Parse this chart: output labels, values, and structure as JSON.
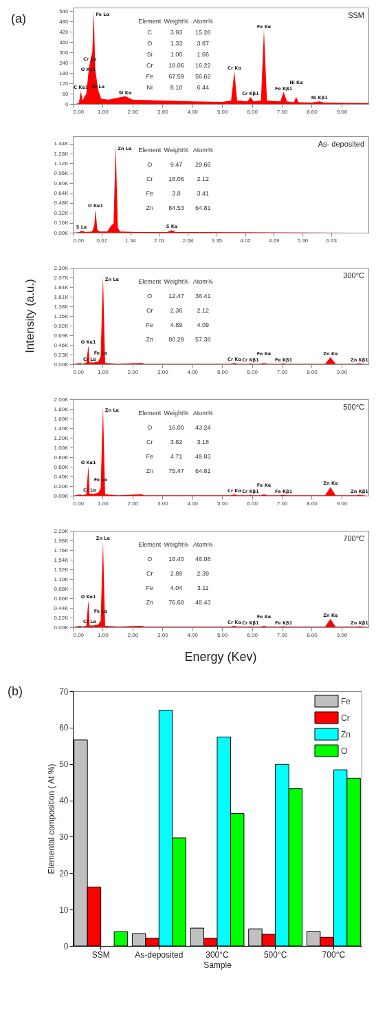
{
  "chart_data": [
    {
      "type": "area",
      "title": "SSM",
      "subtitle": "(a)",
      "xlim": [
        0,
        9.9
      ],
      "ylim": [
        0,
        560
      ],
      "xticks": [
        {
          "value": 0,
          "label": "0.00"
        },
        {
          "value": 1,
          "label": "1.00"
        },
        {
          "value": 2,
          "label": "2.00"
        },
        {
          "value": 3,
          "label": "3.00"
        },
        {
          "value": 4,
          "label": "4.00"
        },
        {
          "value": 5,
          "label": "5.00"
        },
        {
          "value": 6,
          "label": "6.00"
        },
        {
          "value": 7,
          "label": "7.00"
        },
        {
          "value": 8,
          "label": "8.00"
        },
        {
          "value": 9,
          "label": "9.00"
        }
      ],
      "yticks": [
        0,
        60,
        120,
        180,
        240,
        300,
        360,
        420,
        480,
        540
      ],
      "x": [
        0.1,
        0.2,
        0.27,
        0.32,
        0.45,
        0.52,
        0.57,
        0.65,
        0.7,
        0.75,
        0.85,
        0.95,
        1.2,
        1.75,
        2.0,
        3.0,
        4.0,
        5.0,
        5.3,
        5.41,
        5.5,
        5.85,
        5.95,
        6.05,
        6.3,
        6.4,
        6.5,
        6.95,
        7.06,
        7.17,
        7.4,
        7.48,
        7.56,
        8.0,
        8.26,
        8.4,
        9.9
      ],
      "series": [
        {
          "color": "#ff0000",
          "values": [
            0,
            5,
            75,
            20,
            60,
            180,
            240,
            300,
            540,
            200,
            80,
            30,
            25,
            45,
            25,
            20,
            15,
            12,
            20,
            190,
            20,
            15,
            40,
            15,
            20,
            430,
            20,
            15,
            70,
            15,
            10,
            40,
            10,
            8,
            15,
            8,
            5
          ]
        }
      ],
      "annotations": [
        "Element",
        "Weight%",
        "Atom%",
        "C",
        "3.93",
        "15.28",
        "O",
        "1.33",
        "3.87",
        "Si",
        "1.00",
        "1.66",
        "Cr",
        "18.06",
        "16.22",
        "Fe",
        "67.59",
        "56.62",
        "Ni",
        "8.10",
        "6.44",
        {
          "text": "C Kα1",
          "x": 0.27,
          "y": 75
        },
        {
          "text": "O Kα1",
          "x": 0.52,
          "y": 180
        },
        {
          "text": "Cr Lα",
          "x": 0.57,
          "y": 240
        },
        {
          "text": "Fe Lα",
          "x": 0.7,
          "y": 540
        },
        {
          "text": "Ni Lα",
          "x": 0.85,
          "y": 80
        },
        {
          "text": "Si Kα",
          "x": 1.75,
          "y": 45
        },
        {
          "text": "Cr Kα",
          "x": 5.41,
          "y": 190
        },
        {
          "text": "Cr Kβ1",
          "x": 5.95,
          "y": 40
        },
        {
          "text": "Fe Kα",
          "x": 6.4,
          "y": 430
        },
        {
          "text": "Fe Kβ1",
          "x": 7.06,
          "y": 70
        },
        {
          "text": "Ni Kα",
          "x": 7.48,
          "y": 40
        },
        {
          "text": "Ni Kβ1",
          "x": 8.26,
          "y": 15
        }
      ]
    },
    {
      "type": "area",
      "title": "As- deposited",
      "xlim": [
        0,
        6.9
      ],
      "ylim": [
        0,
        1560
      ],
      "xticks": [
        {
          "value": 0,
          "label": "0.00"
        },
        0.67,
        1.34,
        2.01,
        2.68,
        3.35,
        4.02,
        4.69,
        5.36,
        6.03
      ],
      "yticks": [
        {
          "value": 0,
          "label": "0.00K"
        },
        {
          "value": 160,
          "label": "0.16K"
        },
        {
          "value": 320,
          "label": "0.32K"
        },
        {
          "value": 480,
          "label": "0.48K"
        },
        {
          "value": 640,
          "label": "0.64K"
        },
        {
          "value": 800,
          "label": "0.80K"
        },
        {
          "value": 960,
          "label": "0.96K"
        },
        {
          "value": 1120,
          "label": "1.12K"
        },
        {
          "value": 1280,
          "label": "1.28K"
        },
        {
          "value": 1440,
          "label": "1.44K"
        }
      ],
      "x": [
        0,
        0.15,
        0.2,
        0.3,
        0.45,
        0.5,
        0.53,
        0.57,
        0.62,
        0.8,
        0.9,
        0.95,
        1.0,
        1.05,
        1.1,
        1.5,
        2.2,
        2.31,
        2.4,
        3.0,
        6.9
      ],
      "series": [
        {
          "color": "#ff0000",
          "values": [
            0,
            10,
            30,
            10,
            20,
            120,
            380,
            50,
            20,
            20,
            120,
            150,
            1420,
            80,
            20,
            10,
            10,
            40,
            10,
            10,
            0
          ]
        }
      ],
      "annotations": [
        "Element",
        "Weight%",
        "Atom%",
        "O",
        "9.47",
        "29.66",
        "Cr",
        "18.06",
        "2.12",
        "Fe",
        "3.8",
        "3.41",
        "Zn",
        "84.53",
        "64.81",
        {
          "text": "S  Lα",
          "x": 0.2,
          "y": 30
        },
        {
          "text": "O  Kα1",
          "x": 0.53,
          "y": 380
        },
        {
          "text": "Zn Lα",
          "x": 1.0,
          "y": 1420
        },
        {
          "text": "S  Kα",
          "x": 2.31,
          "y": 40
        }
      ]
    },
    {
      "type": "area",
      "title": "300°C",
      "ylabel": "Intensity (a.u.)",
      "xlim": [
        0,
        9.9
      ],
      "ylim": [
        0,
        2300
      ],
      "xticks": [
        {
          "value": 0,
          "label": "0.00"
        },
        {
          "value": 1,
          "label": "1.00"
        },
        {
          "value": 2,
          "label": "2.00"
        },
        {
          "value": 3,
          "label": "3.00"
        },
        {
          "value": 4,
          "label": "4.00"
        },
        {
          "value": 5,
          "label": "5.00"
        },
        {
          "value": 6,
          "label": "6.00"
        },
        {
          "value": 7,
          "label": "7.00"
        },
        {
          "value": 8,
          "label": "8.00"
        },
        {
          "value": 9,
          "label": "9.00"
        }
      ],
      "yticks": [
        {
          "value": 0,
          "label": "0.00K"
        },
        {
          "value": 230,
          "label": "0.23K"
        },
        {
          "value": 460,
          "label": "0.46K"
        },
        {
          "value": 690,
          "label": "0.69K"
        },
        {
          "value": 920,
          "label": "0.92K"
        },
        {
          "value": 1150,
          "label": "1.15K"
        },
        {
          "value": 1380,
          "label": "1.38K"
        },
        {
          "value": 1610,
          "label": "1.61K"
        },
        {
          "value": 1840,
          "label": "1.84K"
        },
        {
          "value": 2070,
          "label": "2.07K"
        },
        {
          "value": 2300,
          "label": "2.30K"
        }
      ],
      "x": [
        0,
        0.25,
        0.3,
        0.45,
        0.52,
        0.56,
        0.7,
        0.85,
        0.93,
        1.01,
        1.08,
        1.5,
        2.3,
        2.4,
        5.3,
        5.41,
        5.5,
        5.9,
        5.95,
        6.0,
        6.3,
        6.4,
        6.5,
        6.95,
        7.06,
        7.15,
        8.45,
        8.63,
        8.8,
        9.5,
        9.6,
        9.7,
        9.9
      ],
      "series": [
        {
          "color": "#ff0000",
          "values": [
            0,
            30,
            10,
            30,
            450,
            40,
            40,
            60,
            180,
            2100,
            30,
            10,
            30,
            10,
            10,
            30,
            10,
            10,
            20,
            10,
            10,
            30,
            10,
            10,
            20,
            10,
            10,
            170,
            10,
            10,
            20,
            10,
            0
          ]
        }
      ],
      "annotations": [
        "Element",
        "Weight%",
        "Atom%",
        "O",
        "12.47",
        "36.41",
        "Cr",
        "2.36",
        "2.12",
        "Fe",
        "4.89",
        "4.09",
        "Zn",
        "80.29",
        "57.38",
        {
          "text": "Zn Lα",
          "x": 1.01,
          "y": 2100
        },
        {
          "text": "O  Kα1",
          "x": 0.52,
          "y": 450
        },
        {
          "text": "Cr Lα",
          "x": 0.56,
          "y": 40
        },
        {
          "text": "Fe Lα",
          "x": 0.93,
          "y": 180
        },
        {
          "text": "Cr Kα",
          "x": 5.41,
          "y": 30
        },
        {
          "text": "Cr Kβ1",
          "x": 5.95,
          "y": 20
        },
        {
          "text": "Fe Kα",
          "x": 6.4,
          "y": 30
        },
        {
          "text": "Fe Kβ1",
          "x": 7.06,
          "y": 20
        },
        {
          "text": "Zn Kα",
          "x": 8.63,
          "y": 170
        },
        {
          "text": "Zn Kβ1",
          "x": 9.6,
          "y": 20
        }
      ]
    },
    {
      "type": "area",
      "title": "500°C",
      "xlim": [
        0,
        9.9
      ],
      "ylim": [
        0,
        2000
      ],
      "xticks": [
        {
          "value": 0,
          "label": "0.00"
        },
        {
          "value": 1,
          "label": "1.00"
        },
        {
          "value": 2,
          "label": "2.00"
        },
        {
          "value": 3,
          "label": "3.00"
        },
        {
          "value": 4,
          "label": "4.00"
        },
        {
          "value": 5,
          "label": "5.00"
        },
        {
          "value": 6,
          "label": "6.00"
        },
        {
          "value": 7,
          "label": "7.00"
        },
        {
          "value": 8,
          "label": "8.00"
        },
        {
          "value": 9,
          "label": "9.00"
        }
      ],
      "yticks": [
        {
          "value": 0,
          "label": "0.00K"
        },
        {
          "value": 200,
          "label": "0.20K"
        },
        {
          "value": 400,
          "label": "0.40K"
        },
        {
          "value": 600,
          "label": "0.60K"
        },
        {
          "value": 800,
          "label": "0.80K"
        },
        {
          "value": 1000,
          "label": "1.00K"
        },
        {
          "value": 1200,
          "label": "1.20K"
        },
        {
          "value": 1400,
          "label": "1.40K"
        },
        {
          "value": 1600,
          "label": "1.60K"
        },
        {
          "value": 1800,
          "label": "1.80K"
        },
        {
          "value": 2000,
          "label": "2.00K"
        }
      ],
      "x": [
        0,
        0.25,
        0.3,
        0.45,
        0.52,
        0.56,
        0.7,
        0.85,
        0.93,
        1.01,
        1.08,
        1.5,
        2.3,
        2.4,
        5.3,
        5.41,
        5.5,
        5.9,
        5.95,
        6.0,
        6.3,
        6.4,
        6.5,
        6.95,
        7.06,
        7.15,
        8.45,
        8.63,
        8.8,
        9.5,
        9.6,
        9.7,
        9.9
      ],
      "series": [
        {
          "color": "#ff0000",
          "values": [
            0,
            30,
            10,
            30,
            620,
            40,
            40,
            60,
            150,
            1850,
            30,
            10,
            30,
            10,
            10,
            30,
            10,
            10,
            20,
            10,
            10,
            30,
            10,
            10,
            20,
            10,
            10,
            180,
            10,
            10,
            20,
            10,
            0
          ]
        }
      ],
      "annotations": [
        "Element",
        "Weight%",
        "Atom%",
        "O",
        "16.00",
        "43.24",
        "Cr",
        "3.82",
        "3.18",
        "Fe",
        "4.71",
        "49.83",
        "Zn",
        "75.47",
        "64.81",
        {
          "text": "Zn Lα",
          "x": 1.01,
          "y": 1850
        },
        {
          "text": "O  Kα1",
          "x": 0.52,
          "y": 620
        },
        {
          "text": "Cr Lα",
          "x": 0.56,
          "y": 40
        },
        {
          "text": "Fe Lα",
          "x": 0.93,
          "y": 150
        },
        {
          "text": "Cr Kα",
          "x": 5.41,
          "y": 30
        },
        {
          "text": "Cr Kβ1",
          "x": 5.95,
          "y": 20
        },
        {
          "text": "Fe Kα",
          "x": 6.4,
          "y": 30
        },
        {
          "text": "Fe Kβ1",
          "x": 7.06,
          "y": 20
        },
        {
          "text": "Zn Kα",
          "x": 8.63,
          "y": 180
        },
        {
          "text": "Zn Kβ1",
          "x": 9.6,
          "y": 20
        }
      ]
    },
    {
      "type": "area",
      "title": "700°C",
      "xlabel": "Energy (Kev)",
      "xlim": [
        0,
        9.9
      ],
      "ylim": [
        0,
        2200
      ],
      "xticks": [
        {
          "value": 0,
          "label": "0.00"
        },
        {
          "value": 1,
          "label": "1.00"
        },
        {
          "value": 2,
          "label": "2.00"
        },
        {
          "value": 3,
          "label": "3.00"
        },
        {
          "value": 4,
          "label": "4.00"
        },
        {
          "value": 5,
          "label": "5.00"
        },
        {
          "value": 6,
          "label": "6.00"
        },
        {
          "value": 7,
          "label": "7.00"
        },
        {
          "value": 8,
          "label": "8.00"
        },
        {
          "value": 9,
          "label": "9.00"
        }
      ],
      "yticks": [
        {
          "value": 0,
          "label": "0.00K"
        },
        {
          "value": 220,
          "label": "0.22K"
        },
        {
          "value": 440,
          "label": "0.44K"
        },
        {
          "value": 660,
          "label": "0.66K"
        },
        {
          "value": 880,
          "label": "0.88K"
        },
        {
          "value": 1100,
          "label": "1.10K"
        },
        {
          "value": 1320,
          "label": "1.32K"
        },
        {
          "value": 1540,
          "label": "1.54K"
        },
        {
          "value": 1760,
          "label": "1.76K"
        },
        {
          "value": 1980,
          "label": "1.98K"
        },
        {
          "value": 2200,
          "label": "2.20K"
        }
      ],
      "x": [
        0,
        0.25,
        0.3,
        0.45,
        0.52,
        0.56,
        0.7,
        0.85,
        0.93,
        1.01,
        1.08,
        1.5,
        2.3,
        2.4,
        5.3,
        5.41,
        5.5,
        5.9,
        5.95,
        6.0,
        6.3,
        6.4,
        6.5,
        6.95,
        7.06,
        7.15,
        8.45,
        8.63,
        8.8,
        9.5,
        9.6,
        9.7,
        9.9
      ],
      "series": [
        {
          "color": "#ff0000",
          "values": [
            0,
            30,
            10,
            30,
            620,
            40,
            40,
            60,
            150,
            1950,
            30,
            10,
            30,
            10,
            10,
            30,
            10,
            10,
            20,
            10,
            10,
            30,
            10,
            10,
            20,
            10,
            10,
            190,
            10,
            10,
            20,
            10,
            0
          ]
        }
      ],
      "annotations": [
        "Element",
        "Weight%",
        "Atom%",
        "O",
        "16.40",
        "46.08",
        "Cr",
        "2.89",
        "2.39",
        "Fe",
        "4.04",
        "3.11",
        "Zn",
        "76.68",
        "48.43",
        {
          "text": "Zn Lα",
          "x": 1.01,
          "y": 1950
        },
        {
          "text": "O  Kα1",
          "x": 0.52,
          "y": 620
        },
        {
          "text": "Cr Lα",
          "x": 0.56,
          "y": 40
        },
        {
          "text": "Fe Lα",
          "x": 0.93,
          "y": 150
        },
        {
          "text": "Cr Kα",
          "x": 5.41,
          "y": 30
        },
        {
          "text": "Cr Kβ1",
          "x": 5.95,
          "y": 20
        },
        {
          "text": "Fe Kα",
          "x": 6.4,
          "y": 30
        },
        {
          "text": "Fe Kβ1",
          "x": 7.06,
          "y": 20
        },
        {
          "text": "Zn Kα",
          "x": 8.63,
          "y": 190
        },
        {
          "text": "Zn Kβ1",
          "x": 9.6,
          "y": 20
        }
      ]
    },
    {
      "type": "bar",
      "subtitle": "(b)",
      "xlabel": "Sample",
      "ylabel": "Elemental composition ( At %)",
      "legend": "top right",
      "categories": [
        "SSM",
        "As-deposited",
        "300°C",
        "500°C",
        "700°C"
      ],
      "ylim": [
        0,
        70
      ],
      "yticks": [
        0,
        10,
        20,
        30,
        40,
        50,
        60,
        70
      ],
      "series": [
        {
          "name": "Fe",
          "color": "#c0c0c0",
          "values": [
            56.6,
            3.4,
            4.9,
            4.7,
            4.0
          ]
        },
        {
          "name": "Cr",
          "color": "#ff0000",
          "values": [
            16.2,
            2.1,
            2.1,
            3.2,
            2.4
          ]
        },
        {
          "name": "Zn",
          "color": "#00ffff",
          "values": [
            null,
            64.8,
            57.4,
            49.9,
            48.4
          ]
        },
        {
          "name": "O",
          "color": "#00ff00",
          "values": [
            3.9,
            29.7,
            36.4,
            43.2,
            46.1
          ]
        }
      ]
    }
  ]
}
